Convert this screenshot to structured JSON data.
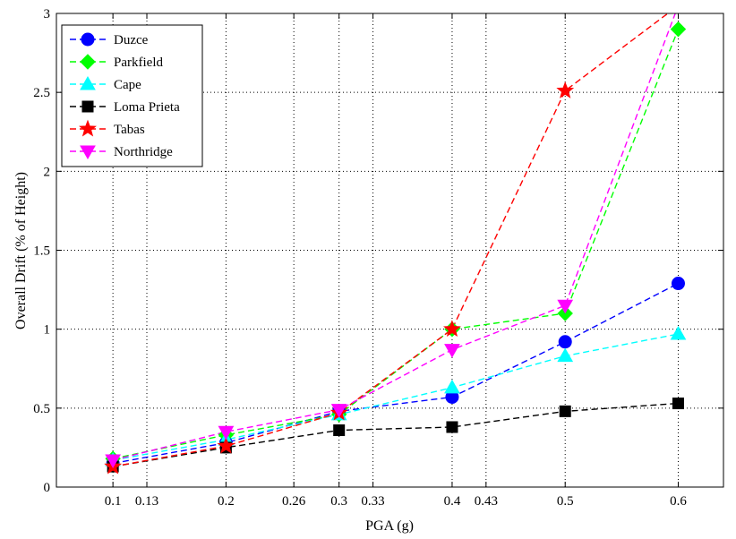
{
  "chart_data": {
    "type": "line",
    "title": "",
    "xlabel": "PGA (g)",
    "ylabel": "Overall Drift (% of  Height)",
    "xlim": [
      0.05,
      0.64
    ],
    "ylim": [
      0,
      3
    ],
    "xticks": [
      0.1,
      0.13,
      0.2,
      0.26,
      0.3,
      0.33,
      0.4,
      0.43,
      0.5,
      0.6
    ],
    "yticks": [
      0,
      0.5,
      1,
      1.5,
      2,
      2.5,
      3
    ],
    "grid": true,
    "legend_position": "top-left",
    "x": [
      0.1,
      0.2,
      0.3,
      0.4,
      0.5,
      0.6
    ],
    "series": [
      {
        "name": "Duzce",
        "color": "#0000ff",
        "marker": "circle",
        "values": [
          0.15,
          0.28,
          0.48,
          0.57,
          0.92,
          1.29
        ]
      },
      {
        "name": "Parkfield",
        "color": "#00ff00",
        "marker": "diamond",
        "values": [
          0.18,
          0.33,
          0.46,
          1.0,
          1.1,
          2.9
        ]
      },
      {
        "name": "Cape",
        "color": "#00ffff",
        "marker": "triangle-up",
        "values": [
          0.17,
          0.3,
          0.46,
          0.63,
          0.83,
          0.97
        ]
      },
      {
        "name": "Loma Prieta",
        "color": "#000000",
        "marker": "square",
        "values": [
          0.13,
          0.25,
          0.36,
          0.38,
          0.48,
          0.53
        ]
      },
      {
        "name": "Tabas",
        "color": "#ff0000",
        "marker": "star",
        "values": [
          0.13,
          0.26,
          0.47,
          1.0,
          2.51,
          3.05
        ]
      },
      {
        "name": "Northridge",
        "color": "#ff00ff",
        "marker": "triangle-down",
        "values": [
          0.17,
          0.35,
          0.49,
          0.87,
          1.15,
          3.05
        ]
      }
    ]
  }
}
